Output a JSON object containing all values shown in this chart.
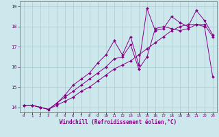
{
  "xlabel": "Windchill (Refroidissement éolien,°C)",
  "bg_color": "#cce8ec",
  "line_color": "#880088",
  "grid_color": "#a8ccd4",
  "hours": [
    0,
    1,
    2,
    3,
    4,
    5,
    6,
    7,
    8,
    9,
    10,
    11,
    12,
    13,
    14,
    15,
    16,
    17,
    18,
    19,
    20,
    21,
    22,
    23
  ],
  "line1": [
    14.1,
    14.1,
    14.0,
    13.9,
    14.1,
    14.3,
    14.5,
    14.8,
    15.0,
    15.3,
    15.6,
    15.9,
    16.1,
    16.3,
    16.6,
    16.9,
    17.2,
    17.5,
    17.8,
    18.0,
    18.1,
    18.1,
    18.0,
    15.5
  ],
  "line2": [
    14.1,
    14.1,
    14.0,
    13.9,
    14.2,
    14.5,
    14.8,
    15.1,
    15.4,
    15.7,
    16.0,
    16.4,
    16.5,
    17.1,
    15.9,
    16.5,
    17.9,
    18.0,
    17.9,
    17.8,
    17.9,
    18.1,
    18.1,
    17.5
  ],
  "line3": [
    14.1,
    14.1,
    14.0,
    13.9,
    14.2,
    14.6,
    15.1,
    15.4,
    15.7,
    16.2,
    16.6,
    17.3,
    16.6,
    17.5,
    16.1,
    18.9,
    17.8,
    17.9,
    18.5,
    18.2,
    18.0,
    18.8,
    18.3,
    17.6
  ],
  "ylim": [
    13.75,
    19.25
  ],
  "yticks": [
    14,
    15,
    16,
    17,
    18,
    19
  ],
  "xlim": [
    -0.5,
    23.5
  ]
}
